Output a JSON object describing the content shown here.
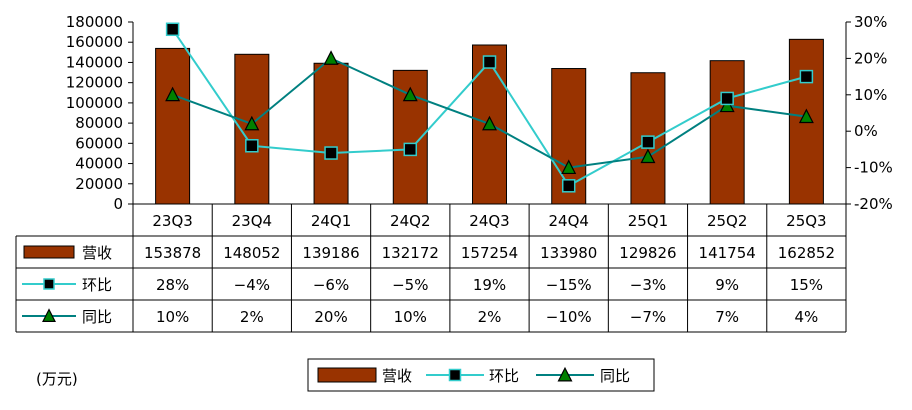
{
  "chart_data": {
    "type": "bar",
    "categories": [
      "23Q3",
      "23Q4",
      "24Q1",
      "24Q2",
      "24Q3",
      "24Q4",
      "25Q1",
      "25Q2",
      "25Q3"
    ],
    "y_left": {
      "ticks": [
        "180000",
        "160000",
        "140000",
        "120000",
        "100000",
        "80000",
        "60000",
        "40000",
        "20000",
        "0"
      ],
      "range": [
        0,
        180000
      ]
    },
    "y_right": {
      "ticks": [
        "30%",
        "20%",
        "10%",
        "0%",
        "-10%",
        "-20%"
      ],
      "range": [
        -20,
        30
      ]
    },
    "series": [
      {
        "name": "营收",
        "type": "bar",
        "axis": "left",
        "color": "#993300",
        "values": [
          153878,
          148052,
          139186,
          132172,
          157254,
          133980,
          129826,
          141754,
          162852
        ],
        "labels": [
          "153878",
          "148052",
          "139186",
          "132172",
          "157254",
          "133980",
          "129826",
          "141754",
          "162852"
        ]
      },
      {
        "name": "环比",
        "type": "line",
        "axis": "right",
        "color": "#33CCCC",
        "marker": "square",
        "values": [
          28,
          -4,
          -6,
          -5,
          19,
          -15,
          -3,
          9,
          15
        ],
        "labels": [
          "28%",
          "−4%",
          "−6%",
          "−5%",
          "19%",
          "−15%",
          "−3%",
          "9%",
          "15%"
        ]
      },
      {
        "name": "同比",
        "type": "line",
        "axis": "right",
        "color": "#008080",
        "marker": "triangle",
        "values": [
          10,
          2,
          20,
          10,
          2,
          -10,
          -7,
          7,
          4
        ],
        "labels": [
          "10%",
          "2%",
          "20%",
          "10%",
          "2%",
          "−10%",
          "−7%",
          "7%",
          "4%"
        ]
      }
    ],
    "legend_position": "bottom",
    "data_table": true,
    "grid": false
  },
  "unit_label": "(万元)"
}
